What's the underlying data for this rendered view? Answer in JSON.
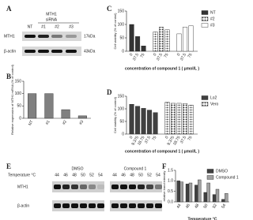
{
  "panel_labels": [
    "A",
    "B",
    "C",
    "D",
    "E",
    "F"
  ],
  "blot_a": {
    "header": "MTH1",
    "subheader": "siRNA",
    "lanes": [
      "NT",
      "#1",
      "#2",
      "#3"
    ],
    "rows": [
      {
        "name": "MTH1",
        "size": "17kDa"
      },
      {
        "name": "β-actin",
        "size": "43kDa"
      }
    ]
  },
  "blot_e": {
    "row_header": "Temperature °C",
    "groups": [
      {
        "name": "DMSO",
        "temperatures": [
          44,
          46,
          48,
          50,
          52,
          54
        ]
      },
      {
        "name": "Compound 1",
        "temperatures": [
          44,
          46,
          48,
          50,
          52,
          54
        ]
      }
    ],
    "rows": [
      "MTH1",
      "β-actin"
    ]
  },
  "chart_data": [
    {
      "type": "bar",
      "y_label": "Relative expression of MTH1 mRNA (% of control)",
      "categories": [
        "NT",
        "#1",
        "#2",
        "#3"
      ],
      "values": [
        100,
        100,
        35,
        10
      ],
      "color": "#808080",
      "ylim": [
        0,
        150
      ],
      "yticks": [
        0,
        50,
        100,
        150
      ]
    },
    {
      "type": "block",
      "y_label": "Cell viability (% of control)",
      "x_label": "concentration of compound 1 ( μmol/L )",
      "categories": [
        "0",
        "37.5",
        "75"
      ],
      "series": [
        {
          "name": "NT",
          "color": "#333333",
          "hatch": false,
          "values": [
            100,
            55,
            20
          ]
        },
        {
          "name": "#2",
          "color": "#333333",
          "hatch": true,
          "values": [
            72,
            90,
            80
          ]
        },
        {
          "name": "#3",
          "color": "#ffffff",
          "hatch": false,
          "values": [
            65,
            90,
            95
          ]
        }
      ],
      "ylim": [
        0,
        150
      ],
      "yticks": [
        0,
        50,
        100,
        150
      ],
      "legend": "right"
    },
    {
      "type": "block",
      "y_label": "Cell viability (% of control)",
      "x_label": "concentration of compound 1 ( μmol/L )",
      "categories": [
        "0",
        "9.375",
        "18.75",
        "37.5",
        "75"
      ],
      "series": [
        {
          "name": "Lo2",
          "color": "#404040",
          "hatch": false,
          "values": [
            118,
            110,
            102,
            95,
            85
          ]
        },
        {
          "name": "Vero",
          "color": "#333333",
          "hatch": true,
          "values": [
            126,
            122,
            122,
            121,
            115
          ]
        }
      ],
      "ylim": [
        0,
        150
      ],
      "yticks": [
        0,
        50,
        100,
        150
      ],
      "legend": "right"
    },
    {
      "type": "bar",
      "y_label": "relative band intensity",
      "x_label": "Temperature °C",
      "categories": [
        "44",
        "46",
        "48",
        "50",
        "52",
        "54"
      ],
      "series": [
        {
          "name": "DMSO",
          "color": "#404040",
          "values": [
            1.0,
            0.85,
            0.8,
            0.45,
            0.35,
            0.12
          ]
        },
        {
          "name": "Compound 1",
          "color": "#a0a0a0",
          "values": [
            0.95,
            0.9,
            1.05,
            0.9,
            0.6,
            0.4
          ]
        }
      ],
      "ylim": [
        0,
        1.5
      ],
      "yticks": [
        {
          "value": 0,
          "label": "0.0"
        },
        0.5,
        {
          "value": 1,
          "label": "1.0"
        },
        1.5
      ],
      "legend": "upper right"
    }
  ]
}
